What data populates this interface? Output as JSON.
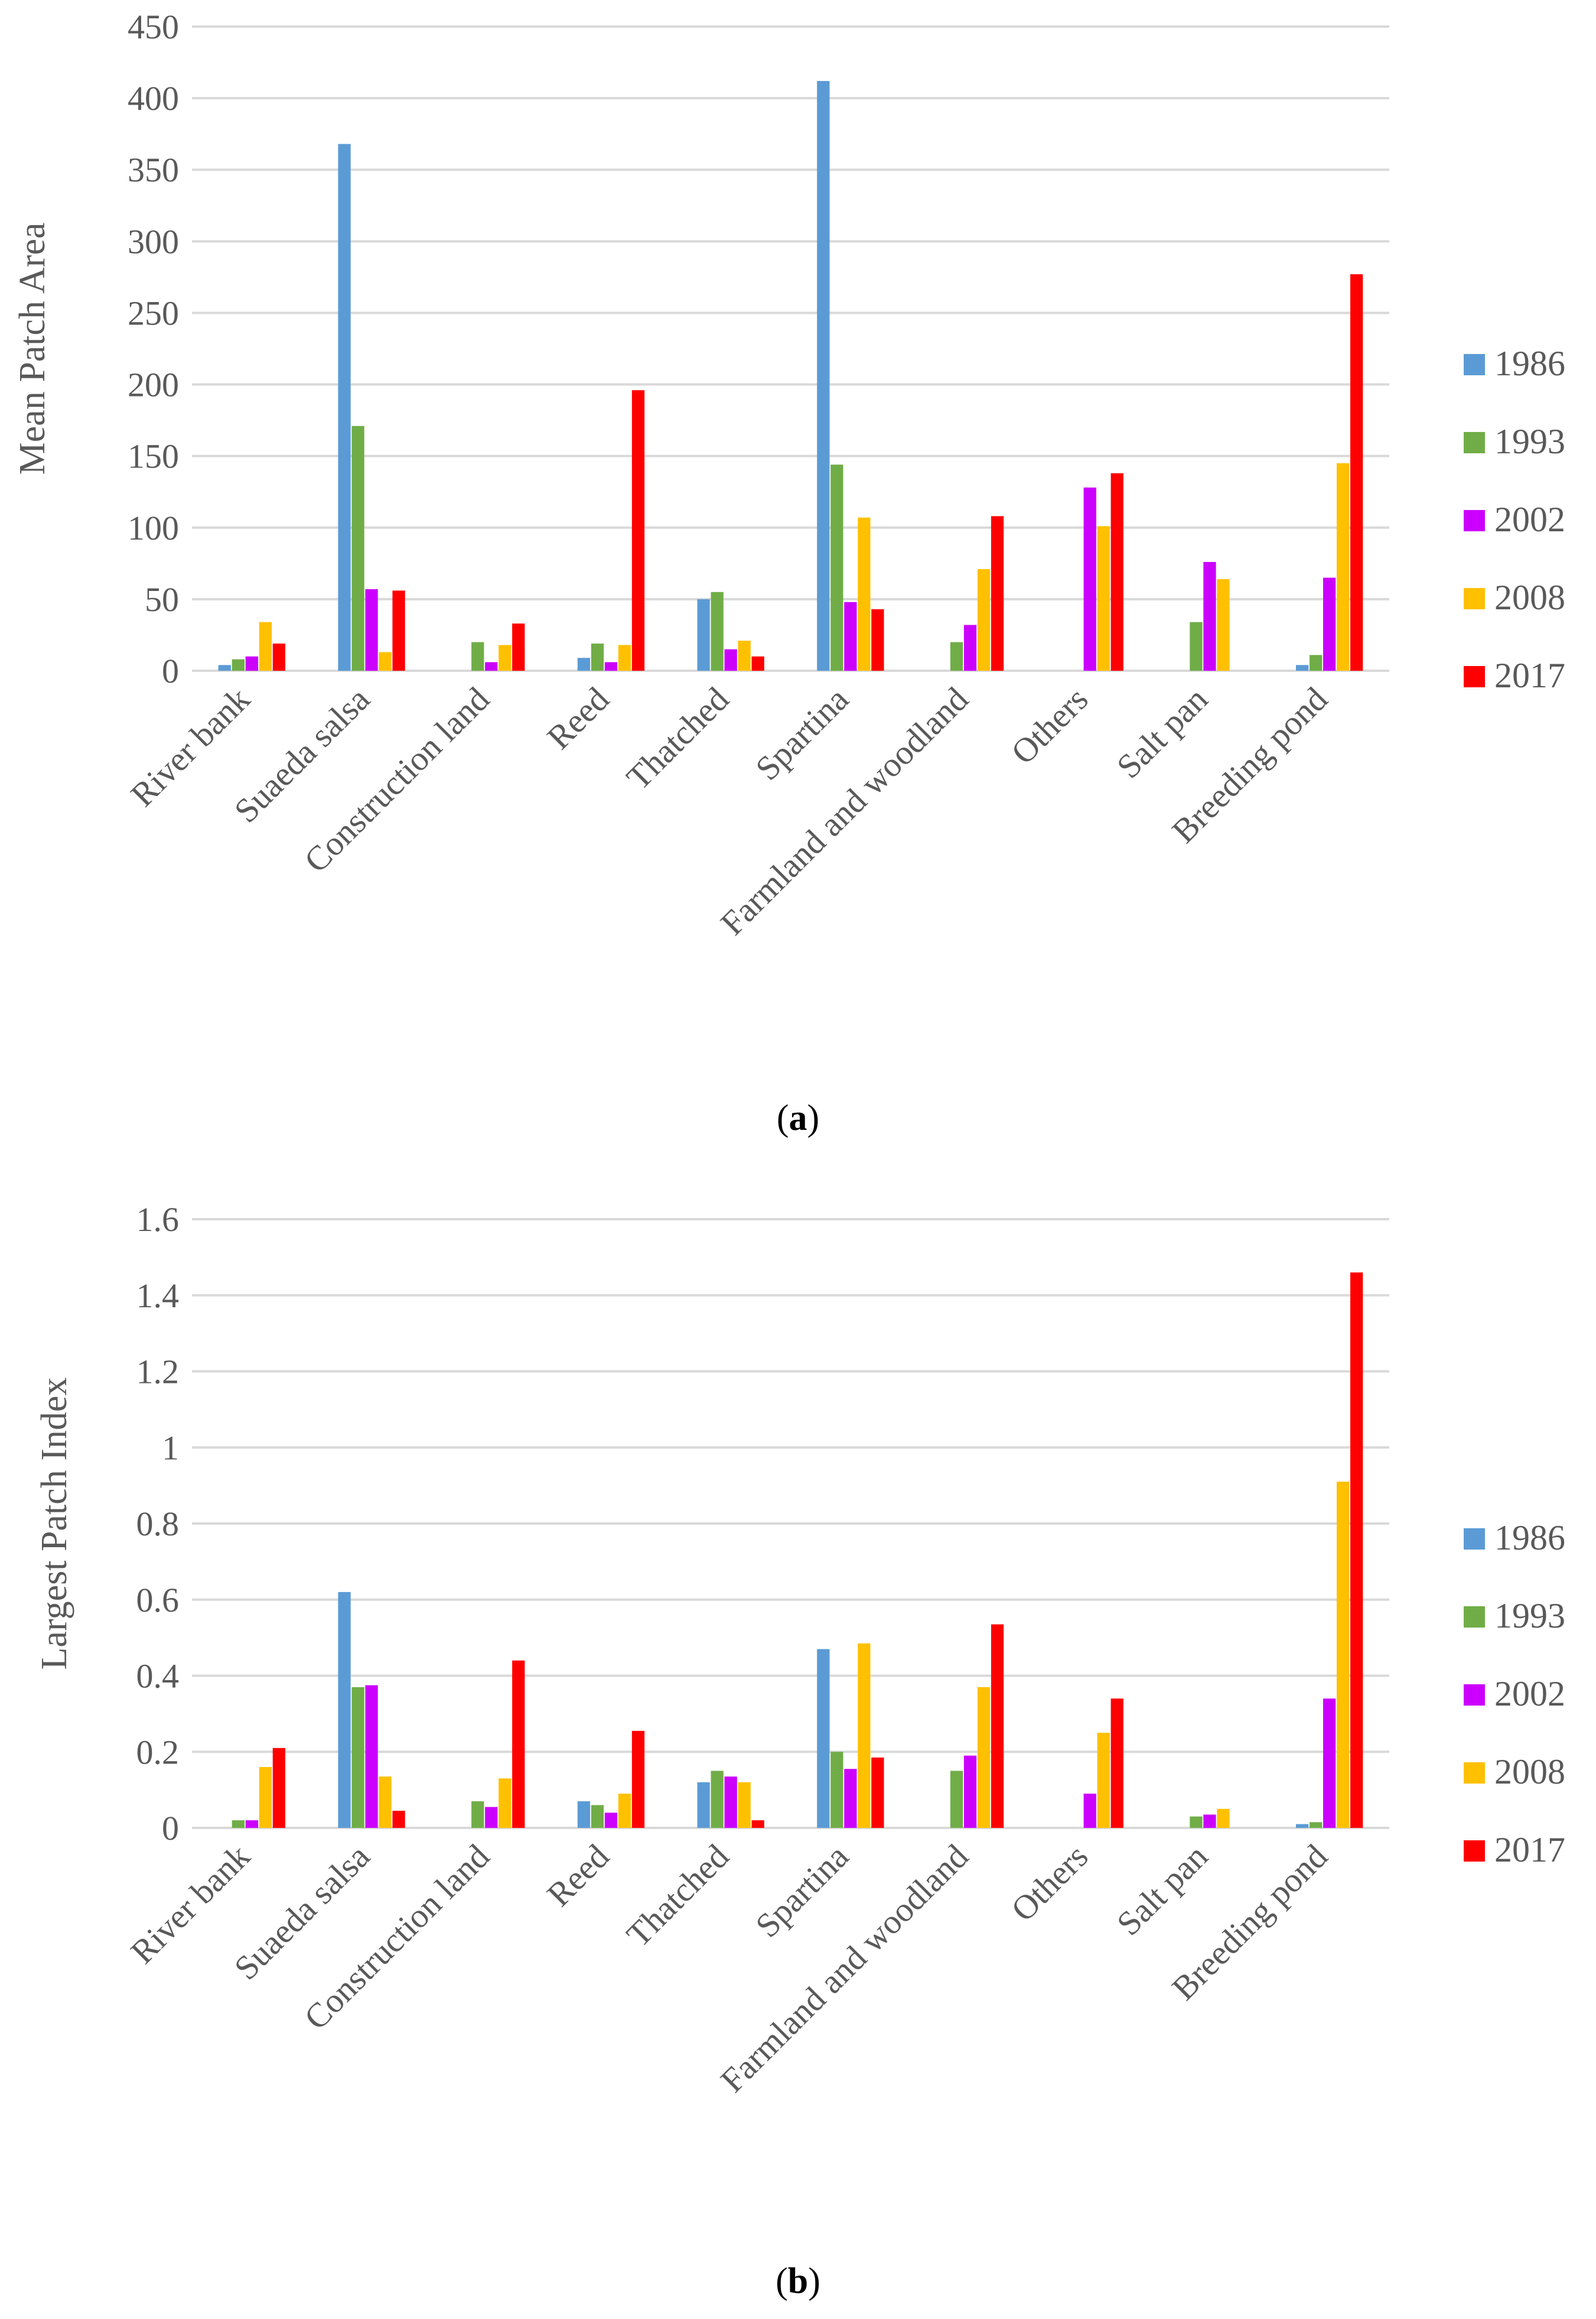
{
  "chart_data": [
    {
      "type": "bar",
      "panel_label": "a",
      "ylabel": "Mean Patch Area",
      "xlabel": "",
      "ylim": [
        0,
        450
      ],
      "yticks": [
        0,
        50,
        100,
        150,
        200,
        250,
        300,
        350,
        400,
        450
      ],
      "ytick_labels": [
        "0",
        "50",
        "100",
        "150",
        "200",
        "250",
        "300",
        "350",
        "400",
        "450"
      ],
      "grid": true,
      "legend_position": "right",
      "categories": [
        "River bank",
        "Suaeda salsa",
        "Construction land",
        "Reed",
        "Thatched",
        "Spartina",
        "Farmland and woodland",
        "Others",
        "Salt pan",
        "Breeding pond"
      ],
      "series": [
        {
          "name": "1986",
          "color": "#5b9bd5",
          "values": [
            4,
            368,
            0,
            9,
            50,
            412,
            0,
            0,
            0,
            4
          ]
        },
        {
          "name": "1993",
          "color": "#70ad47",
          "values": [
            8,
            171,
            20,
            19,
            55,
            144,
            20,
            0,
            34,
            11
          ]
        },
        {
          "name": "2002",
          "color": "#cc00ff",
          "values": [
            10,
            57,
            6,
            6,
            15,
            48,
            32,
            128,
            76,
            65
          ]
        },
        {
          "name": "2008",
          "color": "#ffc000",
          "values": [
            34,
            13,
            18,
            18,
            21,
            107,
            71,
            101,
            64,
            145
          ]
        },
        {
          "name": "2017",
          "color": "#ff0000",
          "values": [
            19,
            56,
            33,
            196,
            10,
            43,
            108,
            138,
            0,
            277
          ]
        }
      ]
    },
    {
      "type": "bar",
      "panel_label": "b",
      "ylabel": "Largest Patch Index",
      "xlabel": "",
      "ylim": [
        0,
        1.6
      ],
      "yticks": [
        0,
        0.2,
        0.4,
        0.6,
        0.8,
        1.0,
        1.2,
        1.4,
        1.6
      ],
      "ytick_labels": [
        "0",
        "0.2",
        "0.4",
        "0.6",
        "0.8",
        "1",
        "1.2",
        "1.4",
        "1.6"
      ],
      "grid": true,
      "legend_position": "right",
      "categories": [
        "River bank",
        "Suaeda salsa",
        "Construction land",
        "Reed",
        "Thatched",
        "Spartina",
        "Farmland and woodland",
        "Others",
        "Salt pan",
        "Breeding pond"
      ],
      "series": [
        {
          "name": "1986",
          "color": "#5b9bd5",
          "values": [
            0,
            0.62,
            0,
            0.07,
            0.12,
            0.47,
            0,
            0,
            0,
            0.01
          ]
        },
        {
          "name": "1993",
          "color": "#70ad47",
          "values": [
            0.02,
            0.37,
            0.07,
            0.06,
            0.15,
            0.2,
            0.15,
            0,
            0.03,
            0.015
          ]
        },
        {
          "name": "2002",
          "color": "#cc00ff",
          "values": [
            0.02,
            0.375,
            0.055,
            0.04,
            0.135,
            0.155,
            0.19,
            0.09,
            0.035,
            0.34
          ]
        },
        {
          "name": "2008",
          "color": "#ffc000",
          "values": [
            0.16,
            0.135,
            0.13,
            0.09,
            0.12,
            0.485,
            0.37,
            0.25,
            0.05,
            0.91
          ]
        },
        {
          "name": "2017",
          "color": "#ff0000",
          "values": [
            0.21,
            0.045,
            0.44,
            0.255,
            0.02,
            0.185,
            0.535,
            0.34,
            0,
            1.46
          ]
        }
      ]
    }
  ]
}
